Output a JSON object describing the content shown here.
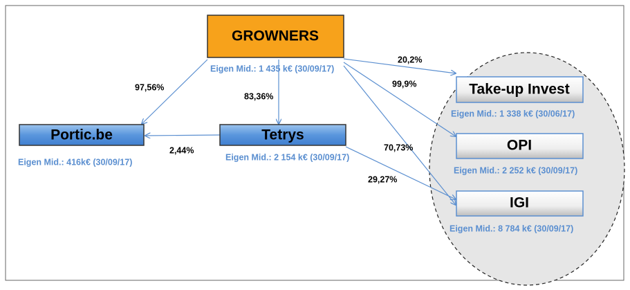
{
  "nodes": [
    {
      "label": "GROWNERS",
      "sublabel": "Eigen Mid.: 1 435 k€ (30/09/17)"
    },
    {
      "label": "Portic.be",
      "sublabel": "Eigen Mid.: 416k€ (30/09/17)"
    },
    {
      "label": "Tetrys",
      "sublabel": "Eigen Mid.: 2 154 k€ (30/09/17)"
    },
    {
      "label": "Take-up Invest",
      "sublabel": "Eigen Mid.: 1 338 k€ (30/06/17)"
    },
    {
      "label": "OPI",
      "sublabel": "Eigen Mid.: 2 252 k€ (30/09/17)"
    },
    {
      "label": "IGI",
      "sublabel": "Eigen Mid.: 8 784 k€ (30/09/17)"
    }
  ],
  "edges": [
    {
      "label": "97,56%"
    },
    {
      "label": "83,36%"
    },
    {
      "label": "2,44%"
    },
    {
      "label": "20,2%"
    },
    {
      "label": "99,9%"
    },
    {
      "label": "70,73%"
    },
    {
      "label": "29,27%"
    }
  ]
}
